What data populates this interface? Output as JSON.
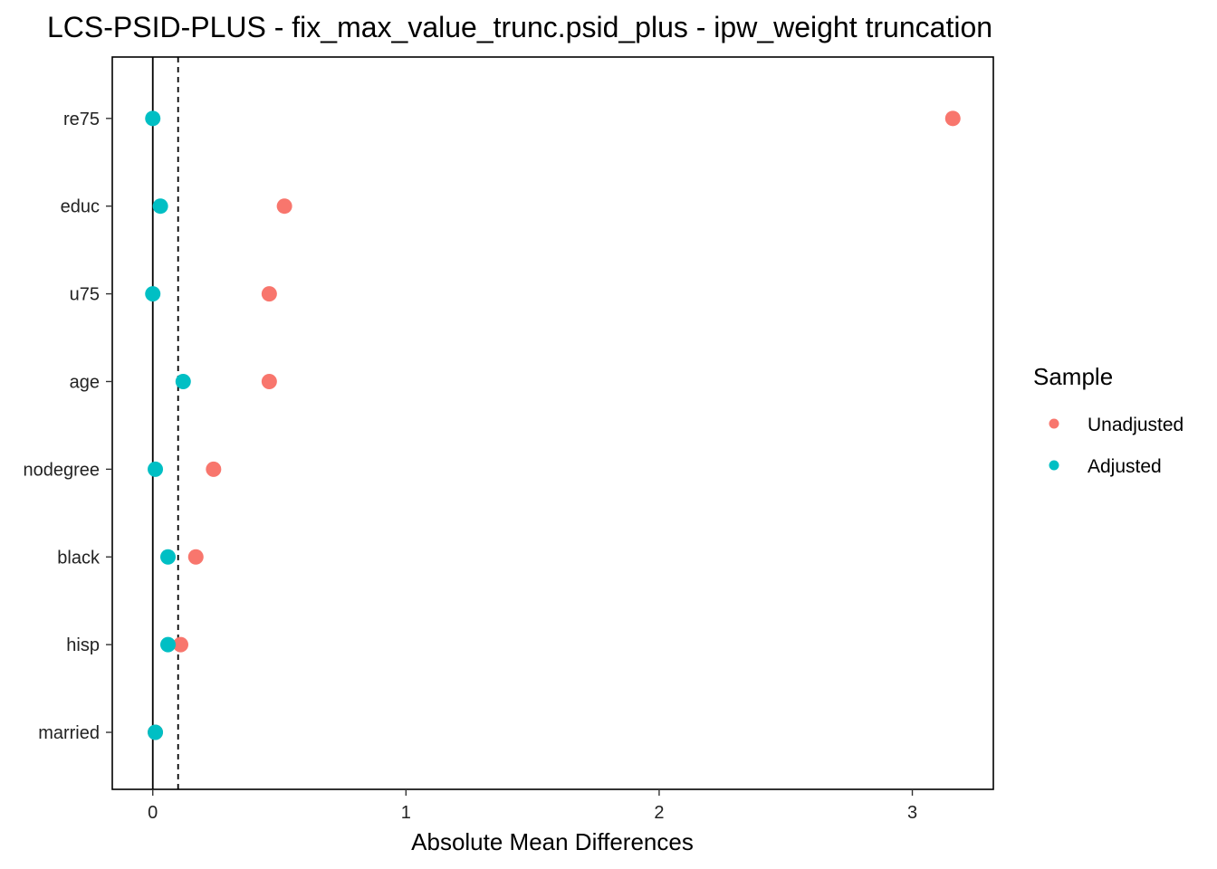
{
  "chart_data": {
    "type": "scatter",
    "title": "LCS-PSID-PLUS - fix_max_value_trunc.psid_plus - ipw_weight truncation",
    "xlabel": "Absolute Mean Differences",
    "ylabel": "",
    "xlim": [
      -0.16,
      3.32
    ],
    "x_ticks": [
      "0",
      "1",
      "2",
      "3"
    ],
    "x_tick_values": [
      0,
      1,
      2,
      3
    ],
    "categories": [
      "re75",
      "educ",
      "u75",
      "age",
      "nodegree",
      "black",
      "hisp",
      "married"
    ],
    "reference_lines": [
      {
        "x": 0,
        "style": "solid"
      },
      {
        "x": 0.1,
        "style": "dashed"
      }
    ],
    "grid": false,
    "legend": {
      "title": "Sample",
      "position": "right"
    },
    "series": [
      {
        "name": "Unadjusted",
        "color": "#F8766D",
        "values": [
          3.16,
          0.52,
          0.46,
          0.46,
          0.24,
          0.17,
          0.11,
          0.01
        ]
      },
      {
        "name": "Adjusted",
        "color": "#00BFC4",
        "values": [
          0.0,
          0.03,
          0.0,
          0.12,
          0.01,
          0.06,
          0.06,
          0.01
        ]
      }
    ]
  }
}
